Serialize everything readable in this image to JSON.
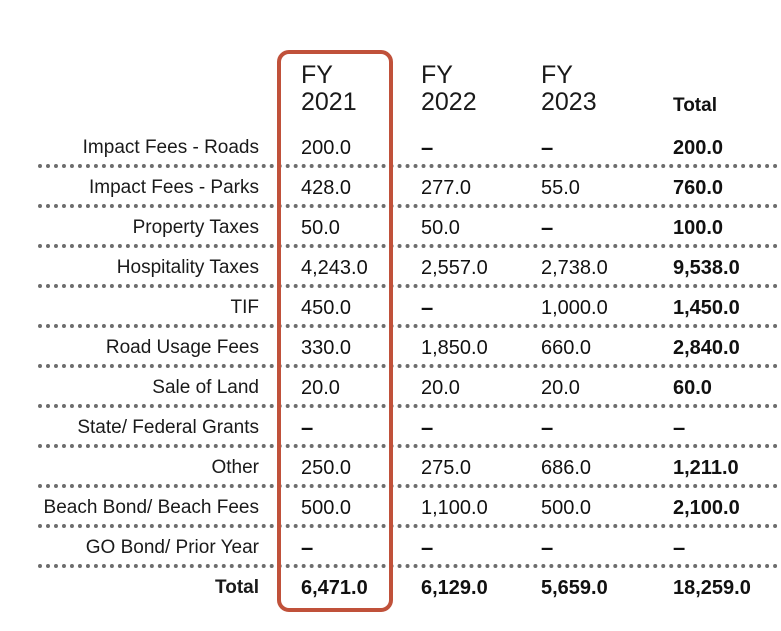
{
  "colors": {
    "highlight": "#c0513a",
    "text": "#111111",
    "separator": "#6d6d6d"
  },
  "headers": {
    "fy2021": "FY\n2021",
    "fy2022": "FY\n2022",
    "fy2023": "FY\n2023",
    "total": "Total"
  },
  "highlighted_column": "FY 2021",
  "rows": [
    {
      "label": "Impact Fees - Roads",
      "fy2021": "200.0",
      "fy2022": "–",
      "fy2023": "–",
      "total": "200.0"
    },
    {
      "label": "Impact Fees - Parks",
      "fy2021": "428.0",
      "fy2022": "277.0",
      "fy2023": "55.0",
      "total": "760.0"
    },
    {
      "label": "Property Taxes",
      "fy2021": "50.0",
      "fy2022": "50.0",
      "fy2023": "–",
      "total": "100.0"
    },
    {
      "label": "Hospitality Taxes",
      "fy2021": "4,243.0",
      "fy2022": "2,557.0",
      "fy2023": "2,738.0",
      "total": "9,538.0"
    },
    {
      "label": "TIF",
      "fy2021": "450.0",
      "fy2022": "–",
      "fy2023": "1,000.0",
      "total": "1,450.0"
    },
    {
      "label": "Road Usage Fees",
      "fy2021": "330.0",
      "fy2022": "1,850.0",
      "fy2023": "660.0",
      "total": "2,840.0"
    },
    {
      "label": "Sale of Land",
      "fy2021": "20.0",
      "fy2022": "20.0",
      "fy2023": "20.0",
      "total": "60.0"
    },
    {
      "label": "State/ Federal Grants",
      "fy2021": "–",
      "fy2022": "–",
      "fy2023": "–",
      "total": "–"
    },
    {
      "label": "Other",
      "fy2021": "250.0",
      "fy2022": "275.0",
      "fy2023": "686.0",
      "total": "1,211.0"
    },
    {
      "label": "Beach Bond/ Beach Fees",
      "fy2021": "500.0",
      "fy2022": "1,100.0",
      "fy2023": "500.0",
      "total": "2,100.0"
    },
    {
      "label": "GO Bond/ Prior Year",
      "fy2021": "–",
      "fy2022": "–",
      "fy2023": "–",
      "total": "–"
    }
  ],
  "total_row": {
    "label": "Total",
    "fy2021": "6,471.0",
    "fy2022": "6,129.0",
    "fy2023": "5,659.0",
    "total": "18,259.0"
  }
}
